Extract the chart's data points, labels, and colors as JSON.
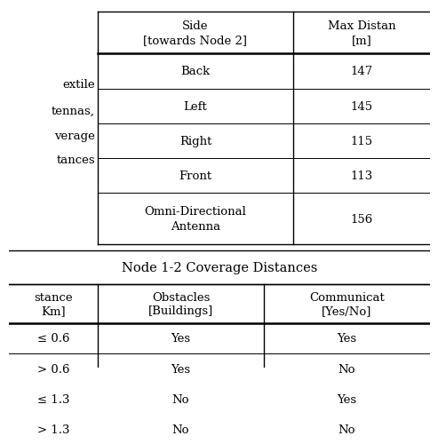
{
  "top_table_col1_header_line1": "Side",
  "top_table_col1_header_line2": "[towards Node 2]",
  "top_table_col2_header_line1": "Max Distan",
  "top_table_col2_header_line2": "[m]",
  "top_table_rows": [
    [
      "Back",
      "147"
    ],
    [
      "Left",
      "145"
    ],
    [
      "Right",
      "115"
    ],
    [
      "Front",
      "113"
    ],
    [
      "Omni-Directional\nAntenna",
      "156"
    ]
  ],
  "left_text_lines": [
    "extile",
    "tennas,",
    "verage",
    "tances"
  ],
  "separator_title": "Node 1-2 Coverage Distances",
  "bottom_col1_header_line1": "stance",
  "bottom_col1_header_line2": "Km]",
  "bottom_col2_header_line1": "Obstacles",
  "bottom_col2_header_line2": "[Buildings]",
  "bottom_col3_header_line1": "Communicat",
  "bottom_col3_header_line2": "[Yes/No]",
  "bottom_rows": [
    [
      "≤ 0.6",
      "Yes",
      "Yes"
    ],
    [
      "> 0.6",
      "Yes",
      "No"
    ],
    [
      "≤ 1.3",
      "No",
      "Yes"
    ],
    [
      "> 1.3",
      "No",
      "No"
    ]
  ],
  "bg_color": "#ffffff",
  "line_color": "#000000",
  "font_size": 9.5,
  "header_font_size": 9.5,
  "title_font_size": 10.5
}
